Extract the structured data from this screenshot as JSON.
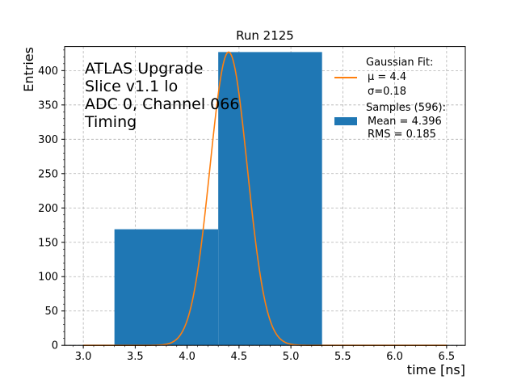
{
  "chart_data": {
    "type": "bar",
    "title": "Run 2125",
    "xlabel": "time [ns]",
    "ylabel": "Entries",
    "xlim": [
      2.82,
      6.68
    ],
    "ylim": [
      0,
      435
    ],
    "x_ticks": [
      "3.0",
      "3.5",
      "4.0",
      "4.5",
      "5.0",
      "5.5",
      "6.0",
      "6.5"
    ],
    "y_ticks": [
      "0",
      "50",
      "100",
      "150",
      "200",
      "250",
      "300",
      "350",
      "400"
    ],
    "grid": true,
    "histogram": {
      "bin_edges": [
        3.3,
        4.3,
        5.3
      ],
      "counts": [
        169,
        427
      ],
      "color": "#1f77b4"
    },
    "fit": {
      "mu": 4.4,
      "sigma": 0.18,
      "peak": 427,
      "x_range": [
        3.0,
        6.5
      ],
      "color": "#ff7f0e"
    },
    "overlay_text": [
      "ATLAS Upgrade",
      "Slice v1.1 lo",
      "ADC 0, Channel 066",
      "Timing"
    ],
    "legend": {
      "position": "top-right",
      "fit_lines": [
        "Gaussian Fit:",
        " μ = 4.4",
        " σ=0.18"
      ],
      "samples_lines": [
        "Samples (596):",
        " Mean = 4.396",
        " RMS = 0.185"
      ]
    }
  }
}
